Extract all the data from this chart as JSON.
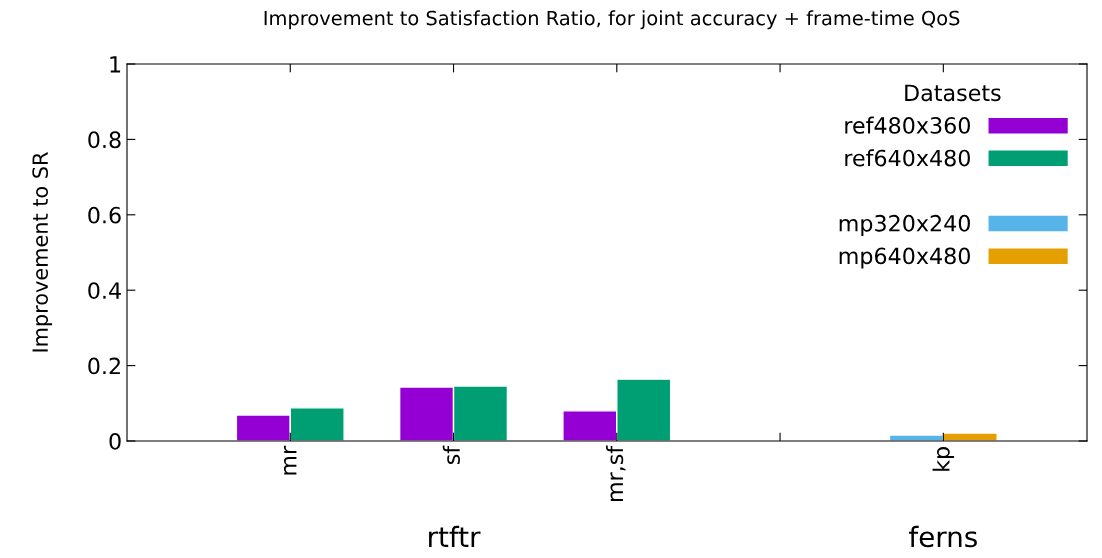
{
  "chart_data": {
    "type": "bar",
    "title": "Improvement to Satisfaction Ratio, for joint accuracy + frame-time QoS",
    "ylabel": "Improvement to SR",
    "legend_title": "Datasets",
    "categories": [
      "mr",
      "sf",
      "mr,sf",
      null,
      "kp"
    ],
    "series": [
      {
        "name": "ref480x360",
        "color": "#9400d3",
        "values": [
          0.069,
          0.143,
          0.08,
          null,
          null
        ]
      },
      {
        "name": "ref640x480",
        "color": "#009e73",
        "values": [
          0.088,
          0.146,
          0.164,
          null,
          null
        ]
      },
      {
        "name": "mp320x240",
        "color": "#56b4e9",
        "values": [
          null,
          null,
          null,
          null,
          0.016
        ]
      },
      {
        "name": "mp640x480",
        "color": "#e69f00",
        "values": [
          null,
          null,
          null,
          null,
          0.021
        ]
      }
    ],
    "ylim": [
      0,
      1
    ],
    "yticks": [
      0,
      0.2,
      0.4,
      0.6,
      0.8,
      1
    ],
    "annotations": [
      "rtftr",
      "ferns"
    ],
    "legend": "top right",
    "grid": false
  }
}
